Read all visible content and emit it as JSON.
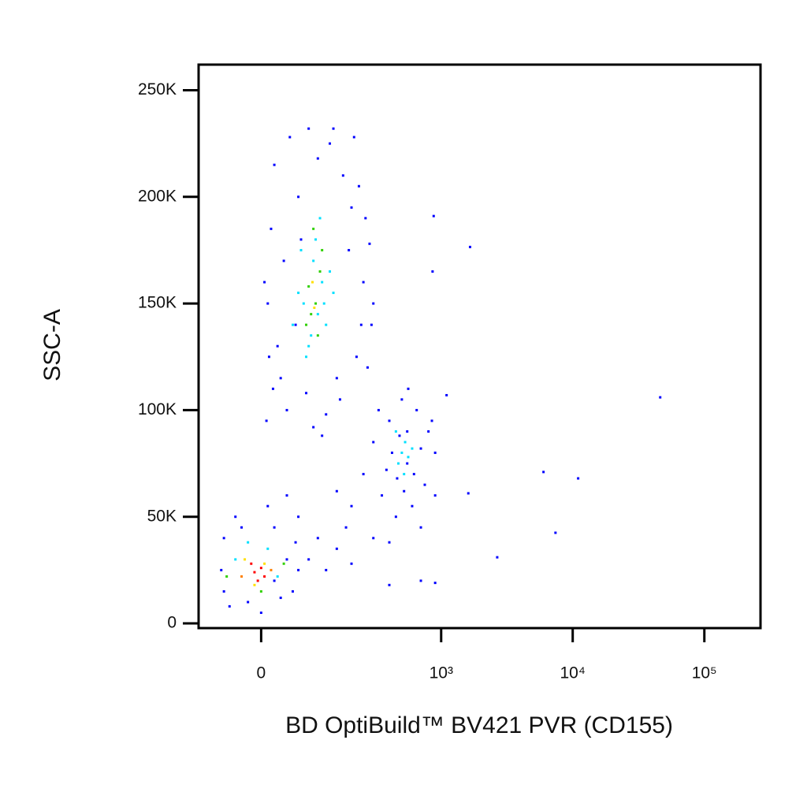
{
  "chart_data": {
    "type": "scatter",
    "x_label": "BD OptiBuild™ BV421 PVR (CD155)",
    "y_label": "SSC-A",
    "x_scale": "biexponential",
    "xlim": [
      -114,
      267000
    ],
    "ylim": [
      -2200,
      262000
    ],
    "xticks": [
      0,
      {
        "value": 1000,
        "label": "10³"
      },
      {
        "value": 10000,
        "label": "10⁴"
      },
      {
        "value": 100000,
        "label": "10⁵"
      }
    ],
    "yticks": [
      0,
      {
        "value": 50000,
        "label": "50K"
      },
      {
        "value": 100000,
        "label": "100K"
      },
      {
        "value": 150000,
        "label": "150K"
      },
      {
        "value": 200000,
        "label": "200K"
      },
      {
        "value": 250000,
        "label": "250K"
      }
    ],
    "series": [
      {
        "color": "#0000ff",
        "x": [
          20,
          45,
          80,
          130,
          170,
          230,
          60,
          15,
          280,
          200,
          35,
          250,
          10,
          290,
          25,
          270,
          18,
          160,
          40,
          90,
          120,
          30,
          220,
          140,
          100,
          5,
          300,
          190,
          55,
          75,
          210,
          260,
          12,
          150,
          65,
          240,
          8,
          110,
          300,
          400,
          500,
          650,
          800,
          900,
          750,
          600,
          450,
          350,
          250,
          550,
          480,
          700,
          380,
          620,
          520,
          420,
          850,
          560,
          200,
          180,
          300,
          150,
          700,
          400,
          550,
          460,
          330,
          900,
          60,
          100,
          150,
          40,
          80,
          200,
          120,
          20,
          700,
          400,
          900,
          -65,
          -60,
          -40,
          -20,
          0,
          20,
          40,
          50,
          60,
          -60,
          10,
          -50,
          30,
          55,
          -30,
          1660,
          46200,
          6000,
          11000,
          7400,
          2670,
          1610,
          877,
          1100,
          860
        ],
        "y": [
          215000,
          228000,
          232000,
          225000,
          210000,
          205000,
          200000,
          185000,
          178000,
          195000,
          170000,
          160000,
          150000,
          140000,
          130000,
          120000,
          110000,
          105000,
          100000,
          92000,
          98000,
          115000,
          125000,
          232000,
          218000,
          160000,
          150000,
          175000,
          140000,
          108000,
          228000,
          190000,
          125000,
          115000,
          180000,
          140000,
          95000,
          88000,
          85000,
          95000,
          105000,
          100000,
          90000,
          80000,
          65000,
          55000,
          50000,
          60000,
          70000,
          75000,
          88000,
          82000,
          72000,
          70000,
          62000,
          80000,
          95000,
          110000,
          55000,
          45000,
          40000,
          62000,
          45000,
          38000,
          90000,
          68000,
          100000,
          60000,
          50000,
          40000,
          35000,
          60000,
          30000,
          28000,
          25000,
          20000,
          20000,
          18000,
          19000,
          25000,
          40000,
          50000,
          10000,
          5000,
          45000,
          30000,
          15000,
          25000,
          15000,
          55000,
          8000,
          12000,
          38000,
          45000,
          176500,
          106000,
          71000,
          68000,
          42500,
          31000,
          61000,
          191000,
          107000,
          165000
        ]
      },
      {
        "color": "#00e0ff",
        "x": [
          90,
          110,
          70,
          100,
          120,
          85,
          60,
          130,
          95,
          75,
          105,
          80,
          115,
          65,
          140,
          50,
          500,
          560,
          470,
          530,
          600,
          450,
          520,
          -40,
          -20,
          10,
          25
        ],
        "y": [
          170000,
          160000,
          150000,
          145000,
          140000,
          135000,
          155000,
          165000,
          180000,
          125000,
          190000,
          130000,
          150000,
          175000,
          155000,
          140000,
          80000,
          78000,
          75000,
          85000,
          82000,
          90000,
          70000,
          30000,
          38000,
          35000,
          22000
        ]
      },
      {
        "color": "#30d000",
        "x": [
          95,
          85,
          105,
          75,
          100,
          110,
          90,
          80,
          -55,
          0,
          35
        ],
        "y": [
          150000,
          145000,
          165000,
          140000,
          135000,
          175000,
          185000,
          158000,
          22000,
          15000,
          28000
        ]
      },
      {
        "color": "#ffe000",
        "x": [
          92,
          88,
          -25,
          5,
          -10
        ],
        "y": [
          148000,
          160000,
          30000,
          28000,
          18000
        ]
      },
      {
        "color": "#ff8000",
        "x": [
          15,
          -30
        ],
        "y": [
          25000,
          22000
        ]
      },
      {
        "color": "#ff0000",
        "x": [
          -10,
          -5,
          0,
          -15,
          5
        ],
        "y": [
          24000,
          20000,
          26000,
          28000,
          22000
        ]
      }
    ]
  }
}
